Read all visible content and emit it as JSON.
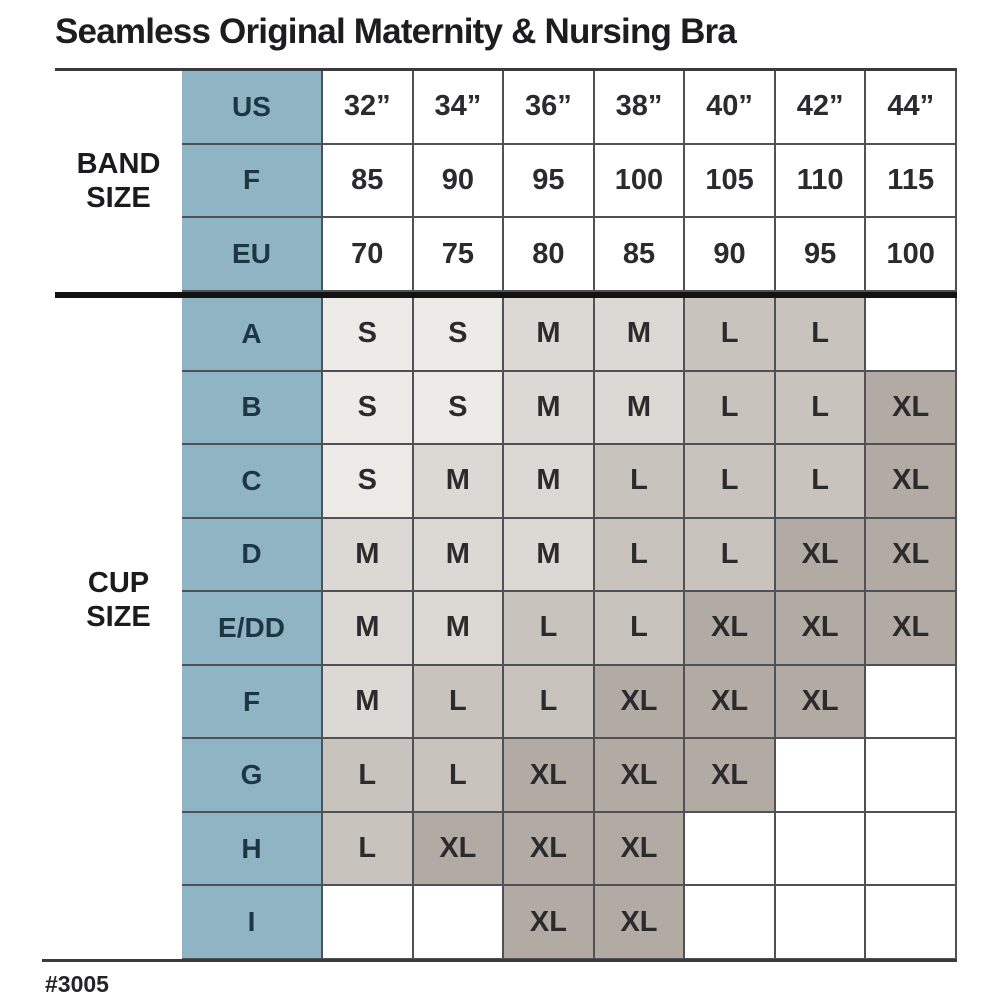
{
  "title": "Seamless Original Maternity & Nursing Bra",
  "footer": "#3005",
  "colors": {
    "blue": "#8fb5c5",
    "navy": "#1c3642",
    "cell_text": "#2b2b2d",
    "grid": "#505156",
    "rule": "#3a3b3e",
    "divider": "#131313",
    "s": "#edebe8",
    "m": "#dcd8d3",
    "l": "#c8c3bd",
    "xl": "#b1aba4"
  },
  "table": {
    "band_section_label": "BAND\nSIZE",
    "cup_section_label": "CUP\nSIZE",
    "band_rows": [
      {
        "label": "US",
        "cells": [
          "32”",
          "34”",
          "36”",
          "38”",
          "40”",
          "42”",
          "44”"
        ]
      },
      {
        "label": "F",
        "cells": [
          "85",
          "90",
          "95",
          "100",
          "105",
          "110",
          "115"
        ]
      },
      {
        "label": "EU",
        "cells": [
          "70",
          "75",
          "80",
          "85",
          "90",
          "95",
          "100"
        ]
      }
    ],
    "cup_rows": [
      {
        "label": "A",
        "cells": [
          "S",
          "S",
          "M",
          "M",
          "L",
          "L",
          ""
        ]
      },
      {
        "label": "B",
        "cells": [
          "S",
          "S",
          "M",
          "M",
          "L",
          "L",
          "XL"
        ]
      },
      {
        "label": "C",
        "cells": [
          "S",
          "M",
          "M",
          "L",
          "L",
          "L",
          "XL"
        ]
      },
      {
        "label": "D",
        "cells": [
          "M",
          "M",
          "M",
          "L",
          "L",
          "XL",
          "XL"
        ]
      },
      {
        "label": "E/DD",
        "cells": [
          "M",
          "M",
          "L",
          "L",
          "XL",
          "XL",
          "XL"
        ]
      },
      {
        "label": "F",
        "cells": [
          "M",
          "L",
          "L",
          "XL",
          "XL",
          "XL",
          ""
        ]
      },
      {
        "label": "G",
        "cells": [
          "L",
          "L",
          "XL",
          "XL",
          "XL",
          "",
          ""
        ]
      },
      {
        "label": "H",
        "cells": [
          "L",
          "XL",
          "XL",
          "XL",
          "",
          "",
          ""
        ]
      },
      {
        "label": "I",
        "cells": [
          "",
          "",
          "XL",
          "XL",
          "",
          "",
          ""
        ]
      }
    ]
  },
  "chart_data": {
    "type": "table",
    "title": "Seamless Original Maternity & Nursing Bra",
    "columns_us_band": [
      "32”",
      "34”",
      "36”",
      "38”",
      "40”",
      "42”",
      "44”"
    ],
    "rows_f_band": [
      "85",
      "90",
      "95",
      "100",
      "105",
      "110",
      "115"
    ],
    "rows_eu_band": [
      "70",
      "75",
      "80",
      "85",
      "90",
      "95",
      "100"
    ],
    "cup_sizes": [
      "A",
      "B",
      "C",
      "D",
      "E/DD",
      "F",
      "G",
      "H",
      "I"
    ],
    "size_matrix": [
      [
        "S",
        "S",
        "M",
        "M",
        "L",
        "L",
        ""
      ],
      [
        "S",
        "S",
        "M",
        "M",
        "L",
        "L",
        "XL"
      ],
      [
        "S",
        "M",
        "M",
        "L",
        "L",
        "L",
        "XL"
      ],
      [
        "M",
        "M",
        "M",
        "L",
        "L",
        "XL",
        "XL"
      ],
      [
        "M",
        "M",
        "L",
        "L",
        "XL",
        "XL",
        "XL"
      ],
      [
        "M",
        "L",
        "L",
        "XL",
        "XL",
        "XL",
        ""
      ],
      [
        "L",
        "L",
        "XL",
        "XL",
        "XL",
        "",
        ""
      ],
      [
        "L",
        "XL",
        "XL",
        "XL",
        "",
        "",
        ""
      ],
      [
        "",
        "",
        "XL",
        "XL",
        "",
        "",
        ""
      ]
    ],
    "style_number": "#3005"
  }
}
